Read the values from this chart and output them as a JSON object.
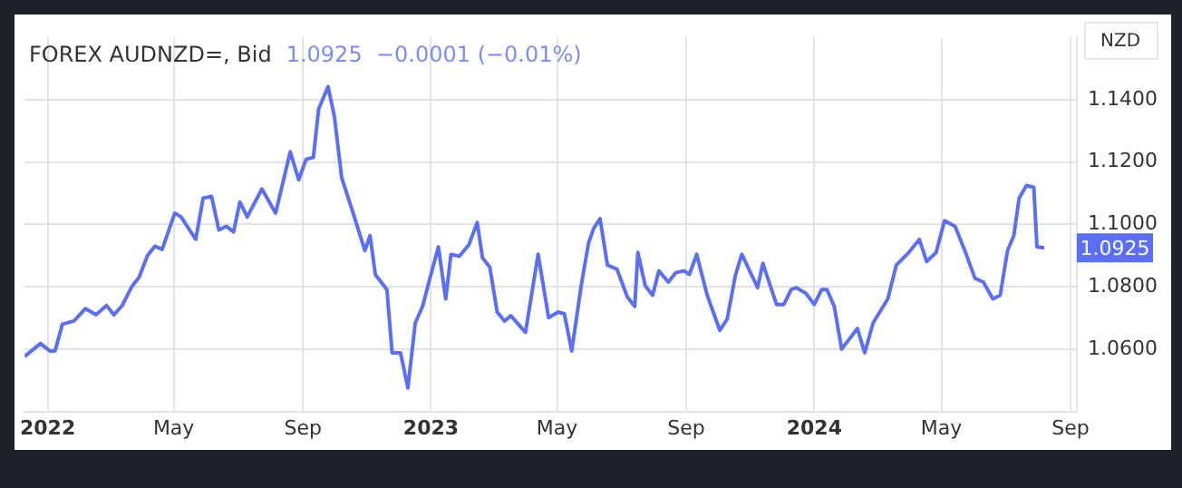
{
  "chart_data": {
    "type": "line",
    "title": "FOREX AUDNZD=, Bid",
    "subtitle": "1.0925  −0.0001 (−0.01%)",
    "ylabel": "NZD",
    "x": [
      "2021-12-10",
      "2021-12-25",
      "2022-01-03",
      "2022-01-08",
      "2022-01-15",
      "2022-01-26",
      "2022-02-06",
      "2022-02-16",
      "2022-02-26",
      "2022-03-05",
      "2022-03-13",
      "2022-03-22",
      "2022-03-29",
      "2022-04-06",
      "2022-04-13",
      "2022-04-20",
      "2022-05-02",
      "2022-05-08",
      "2022-05-22",
      "2022-05-29",
      "2022-06-06",
      "2022-06-13",
      "2022-06-20",
      "2022-06-27",
      "2022-07-03",
      "2022-07-10",
      "2022-07-24",
      "2022-08-06",
      "2022-08-20",
      "2022-08-28",
      "2022-09-04",
      "2022-09-11",
      "2022-09-16",
      "2022-09-25",
      "2022-10-01",
      "2022-10-08",
      "2022-10-20",
      "2022-10-30",
      "2022-11-04",
      "2022-11-09",
      "2022-11-20",
      "2022-11-25",
      "2022-12-03",
      "2022-12-10",
      "2022-12-17",
      "2022-12-24",
      "2022-12-30",
      "2023-01-08",
      "2023-01-15",
      "2023-01-20",
      "2023-01-28",
      "2023-02-06",
      "2023-02-14",
      "2023-02-19",
      "2023-02-26",
      "2023-03-05",
      "2023-03-12",
      "2023-03-18",
      "2023-04-01",
      "2023-04-13",
      "2023-04-23",
      "2023-05-02",
      "2023-05-08",
      "2023-05-15",
      "2023-05-24",
      "2023-05-31",
      "2023-06-05",
      "2023-06-11",
      "2023-06-18",
      "2023-06-27",
      "2023-07-07",
      "2023-07-14",
      "2023-07-17",
      "2023-07-24",
      "2023-07-31",
      "2023-08-06",
      "2023-08-15",
      "2023-08-22",
      "2023-08-30",
      "2023-09-04",
      "2023-09-11",
      "2023-09-21",
      "2023-10-03",
      "2023-10-10",
      "2023-10-18",
      "2023-10-24",
      "2023-11-08",
      "2023-11-13",
      "2023-11-26",
      "2023-12-03",
      "2023-12-10",
      "2023-12-15",
      "2023-12-24",
      "2024-01-01",
      "2024-01-08",
      "2024-01-13",
      "2024-01-20",
      "2024-01-27",
      "2024-02-11",
      "2024-02-18",
      "2024-02-26",
      "2024-03-11",
      "2024-03-19",
      "2024-03-31",
      "2024-04-10",
      "2024-04-17",
      "2024-04-26",
      "2024-05-04",
      "2024-05-14",
      "2024-05-24",
      "2024-06-02",
      "2024-06-10",
      "2024-06-19",
      "2024-06-26",
      "2024-07-03",
      "2024-07-09",
      "2024-07-14",
      "2024-07-21",
      "2024-07-28",
      "2024-07-31",
      "2024-08-07"
    ],
    "series": [
      {
        "color": "#5b6ff5",
        "values": [
          1.0576,
          1.0618,
          1.0594,
          1.0594,
          1.068,
          1.069,
          1.073,
          1.071,
          1.074,
          1.071,
          1.074,
          1.08,
          1.083,
          1.09,
          1.093,
          1.092,
          1.1036,
          1.1024,
          1.0952,
          1.1084,
          1.109,
          1.0982,
          1.0994,
          1.0976,
          1.1072,
          1.1024,
          1.1114,
          1.1036,
          1.1233,
          1.1143,
          1.1209,
          1.1215,
          1.137,
          1.1442,
          1.1346,
          1.1149,
          1.1024,
          1.0916,
          1.0964,
          1.0839,
          1.0791,
          1.0588,
          1.0588,
          1.0475,
          1.0684,
          1.0737,
          1.0815,
          1.0928,
          1.0761,
          1.0904,
          1.0898,
          1.0934,
          1.1006,
          1.0893,
          1.0863,
          1.0719,
          1.069,
          1.0707,
          1.0654,
          1.0904,
          1.0701,
          1.0719,
          1.0713,
          1.0594,
          1.0803,
          1.094,
          1.0988,
          1.1018,
          1.0869,
          1.0857,
          1.0767,
          1.0737,
          1.091,
          1.0803,
          1.0773,
          1.0851,
          1.0815,
          1.0845,
          1.0851,
          1.0839,
          1.0904,
          1.0773,
          1.066,
          1.0696,
          1.0839,
          1.0904,
          1.0797,
          1.0875,
          1.0743,
          1.0743,
          1.0791,
          1.0797,
          1.0779,
          1.0743,
          1.0791,
          1.0791,
          1.0737,
          1.06,
          1.0666,
          1.0588,
          1.0684,
          1.0761,
          1.0869,
          1.091,
          1.0952,
          1.0881,
          1.091,
          1.1012,
          1.0994,
          1.091,
          1.0827,
          1.0815,
          1.0761,
          1.0773,
          1.0916,
          1.0964,
          1.1084,
          1.1125,
          1.1119,
          1.0928,
          1.0925
        ]
      }
    ],
    "xlim": [
      "2021-12-10",
      "2024-09-07"
    ],
    "xticks": [
      {
        "value": "2022-01-01",
        "label": "2022"
      },
      {
        "value": "2022-05-01",
        "label": "May"
      },
      {
        "value": "2022-09-01",
        "label": "Sep"
      },
      {
        "value": "2023-01-01",
        "label": "2023"
      },
      {
        "value": "2023-05-01",
        "label": "May"
      },
      {
        "value": "2023-09-01",
        "label": "Sep"
      },
      {
        "value": "2024-01-01",
        "label": "2024"
      },
      {
        "value": "2024-05-01",
        "label": "May"
      },
      {
        "value": "2024-09-01",
        "label": "Sep"
      }
    ],
    "ylim": [
      1.04,
      1.16
    ],
    "yticks": [
      {
        "value": 1.06,
        "label": "1.0600"
      },
      {
        "value": 1.08,
        "label": "1.0800"
      },
      {
        "value": 1.1,
        "label": "1.1000"
      },
      {
        "value": 1.12,
        "label": "1.1200"
      },
      {
        "value": 1.14,
        "label": "1.1400"
      }
    ],
    "annotations": [
      {
        "text": "1.0925",
        "x": "2024-08-07",
        "y": 1.0925
      }
    ],
    "grid": true,
    "legend": false,
    "marker": "none",
    "line_style": "solid"
  }
}
